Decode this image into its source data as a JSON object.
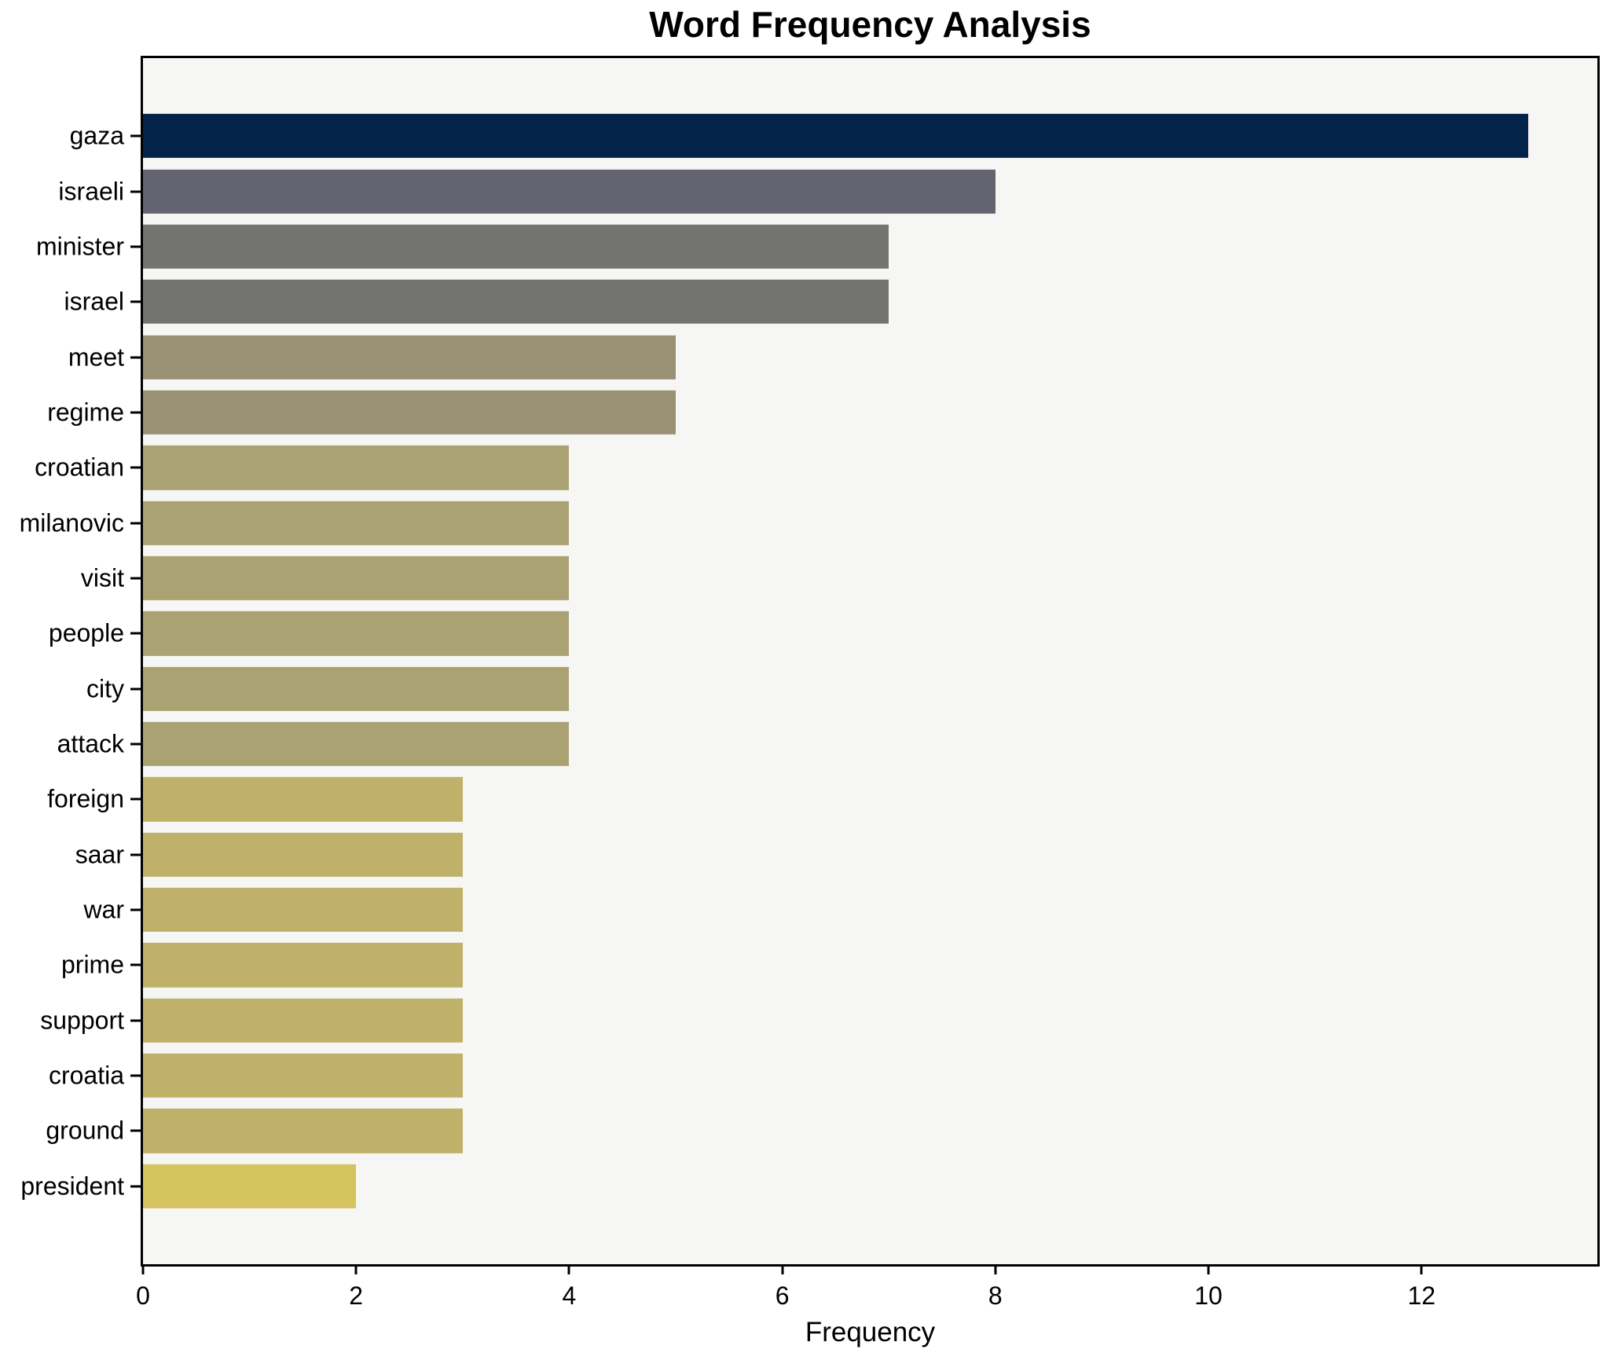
{
  "chart_data": {
    "type": "bar",
    "orientation": "horizontal",
    "title": "Word Frequency Analysis",
    "xlabel": "Frequency",
    "ylabel": "",
    "categories": [
      "gaza",
      "israeli",
      "minister",
      "israel",
      "meet",
      "regime",
      "croatian",
      "milanovic",
      "visit",
      "people",
      "city",
      "attack",
      "foreign",
      "saar",
      "war",
      "prime",
      "support",
      "croatia",
      "ground",
      "president"
    ],
    "values": [
      13,
      8,
      7,
      7,
      5,
      5,
      4,
      4,
      4,
      4,
      4,
      4,
      3,
      3,
      3,
      3,
      3,
      3,
      3,
      2
    ],
    "bar_colors": [
      "#03234b",
      "#646471",
      "#737372",
      "#737372",
      "#999174",
      "#999174",
      "#aba273",
      "#aba273",
      "#aba273",
      "#aba273",
      "#aba273",
      "#aba273",
      "#bfb169",
      "#bfb169",
      "#bfb169",
      "#bfb169",
      "#bfb169",
      "#bfb169",
      "#bfb169",
      "#d5c35d"
    ],
    "x_ticks": [
      0,
      2,
      4,
      6,
      8,
      10,
      12
    ],
    "xlim": [
      0,
      13.65
    ],
    "grid": false,
    "legend": null,
    "plot_bg": "#f6f6f5",
    "figure_bg": "#ffffff",
    "spine_color": "#000000",
    "text_color": "#000000"
  }
}
